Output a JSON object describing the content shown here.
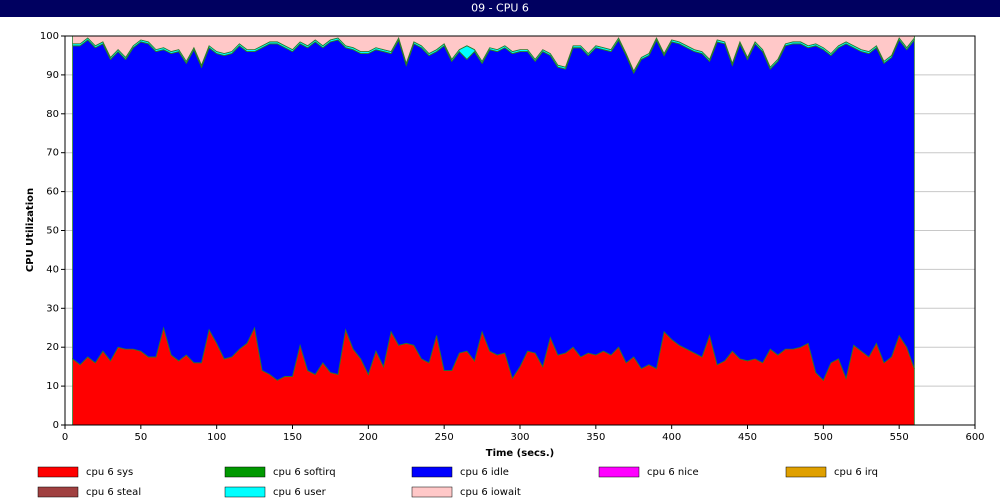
{
  "chart_data": {
    "type": "stacked-area",
    "title": "09 - CPU 6",
    "x_label": "Time (secs.)",
    "y_label": "CPU Utilization",
    "xlim": [
      0,
      600
    ],
    "xticks": [
      0,
      50,
      100,
      150,
      200,
      250,
      300,
      350,
      400,
      450,
      500,
      550,
      600
    ],
    "ylim": [
      0,
      100
    ],
    "yticks": [
      0,
      10,
      20,
      30,
      40,
      50,
      60,
      70,
      80,
      90,
      100
    ],
    "grid": true,
    "x": [
      5,
      10,
      15,
      20,
      25,
      30,
      35,
      40,
      45,
      50,
      55,
      60,
      65,
      70,
      75,
      80,
      85,
      90,
      95,
      100,
      105,
      110,
      115,
      120,
      125,
      130,
      135,
      140,
      145,
      150,
      155,
      160,
      165,
      170,
      175,
      180,
      185,
      190,
      195,
      200,
      205,
      210,
      215,
      220,
      225,
      230,
      235,
      240,
      245,
      250,
      255,
      260,
      265,
      270,
      275,
      280,
      285,
      290,
      295,
      300,
      305,
      310,
      315,
      320,
      325,
      330,
      335,
      340,
      345,
      350,
      355,
      360,
      365,
      370,
      375,
      380,
      385,
      390,
      395,
      400,
      405,
      410,
      415,
      420,
      425,
      430,
      435,
      440,
      445,
      450,
      455,
      460,
      465,
      470,
      475,
      480,
      485,
      490,
      495,
      500,
      505,
      510,
      515,
      520,
      525,
      530,
      535,
      540,
      545,
      550,
      555,
      560
    ],
    "series": [
      {
        "name": "cpu 6 sys",
        "color": "#ff0000",
        "values": [
          17,
          15.5,
          17.5,
          16,
          19,
          16.5,
          20,
          19.5,
          19.5,
          19,
          17.5,
          17.5,
          25,
          18,
          16.5,
          18,
          16,
          16,
          24.5,
          21,
          17,
          17.5,
          19.5,
          21,
          25,
          14,
          13,
          11.5,
          12.5,
          12.5,
          20.5,
          14,
          13,
          16,
          13.5,
          13,
          24.5,
          19.5,
          17,
          13,
          19,
          15,
          24,
          20.5,
          21,
          20.5,
          17,
          16,
          23,
          14,
          14,
          18.5,
          19,
          16.5,
          24,
          19,
          18,
          18.5,
          12,
          15,
          19,
          18.5,
          15,
          22.5,
          18,
          18.5,
          20,
          17.5,
          18.5,
          18,
          19,
          18,
          20,
          16,
          17.5,
          14.5,
          15.5,
          14.5,
          24,
          22,
          20.5,
          19.5,
          18.5,
          17.5,
          23,
          15.5,
          16.5,
          19,
          17,
          16.5,
          17,
          16,
          19.5,
          18,
          19.5,
          19.5,
          20,
          21,
          13.5,
          11.5,
          16,
          17,
          12,
          20.5,
          19,
          17.5,
          21,
          16,
          17.5,
          23,
          20,
          14.5
        ]
      },
      {
        "name": "cpu 6 softirq",
        "color": "#009900",
        "values": [
          0,
          0,
          0,
          0,
          0,
          0,
          0,
          0,
          0,
          0,
          0,
          0,
          0,
          0,
          0,
          0,
          0,
          0,
          0,
          0,
          0,
          0,
          0,
          0,
          0,
          0,
          0,
          0,
          0,
          0,
          0,
          0,
          0,
          0,
          0,
          0,
          0,
          0,
          0,
          0,
          0,
          0,
          0,
          0,
          0,
          0,
          0,
          0,
          0,
          0,
          0,
          0,
          0,
          0,
          0,
          0,
          0,
          0,
          0,
          0,
          0,
          0,
          0,
          0,
          0,
          0,
          0,
          0,
          0,
          0,
          0,
          0,
          0,
          0,
          0,
          0,
          0,
          0,
          0,
          0,
          0,
          0,
          0,
          0,
          0,
          0,
          0,
          0,
          0,
          0,
          0,
          0,
          0,
          0,
          0,
          0,
          0,
          0,
          0,
          0,
          0,
          0,
          0,
          0,
          0,
          0,
          0,
          0,
          0,
          0,
          0,
          0
        ]
      },
      {
        "name": "cpu 6 idle",
        "color": "#0000ff",
        "values": [
          80.5,
          82,
          81.5,
          81,
          79,
          77.5,
          76,
          74.5,
          77.5,
          79.5,
          80.5,
          78.5,
          71.5,
          77.5,
          79.5,
          75,
          80.5,
          76,
          72.5,
          74.5,
          78,
          78,
          78,
          75,
          71,
          83,
          85,
          86.5,
          84.5,
          83.5,
          77.5,
          83,
          85.5,
          81,
          85,
          86,
          72.5,
          77,
          78.5,
          82.5,
          77.5,
          81,
          71.5,
          78.5,
          71.5,
          77.5,
          80,
          79,
          73,
          83.5,
          79.5,
          77.5,
          75,
          79.5,
          69,
          77.5,
          78,
          78.5,
          83.5,
          81,
          77,
          75,
          81,
          72.5,
          74,
          73,
          77,
          79.5,
          76.5,
          79,
          77.5,
          78,
          79,
          79,
          73,
          79.5,
          79.5,
          84.5,
          71,
          76.5,
          77.5,
          77.5,
          77.5,
          78,
          70.5,
          83,
          81.5,
          73.5,
          81,
          77.5,
          81,
          80,
          72,
          75.5,
          78,
          78.5,
          78,
          76,
          84,
          85,
          79,
          80,
          86,
          76.5,
          77,
          78,
          76,
          77,
          77,
          76,
          76.5,
          84.5
        ]
      },
      {
        "name": "cpu 6 nice",
        "color": "#ff00ff",
        "values": [
          0,
          0,
          0,
          0,
          0,
          0,
          0,
          0,
          0,
          0,
          0,
          0,
          0,
          0,
          0,
          0,
          0,
          0,
          0,
          0,
          0,
          0,
          0,
          0,
          0,
          0,
          0,
          0,
          0,
          0,
          0,
          0,
          0,
          0,
          0,
          0,
          0,
          0,
          0,
          0,
          0,
          0,
          0,
          0,
          0,
          0,
          0,
          0,
          0,
          0,
          0,
          0,
          0,
          0,
          0,
          0,
          0,
          0,
          0,
          0,
          0,
          0,
          0,
          0,
          0,
          0,
          0,
          0,
          0,
          0,
          0,
          0,
          0,
          0,
          0,
          0,
          0,
          0,
          0,
          0,
          0,
          0,
          0,
          0,
          0,
          0,
          0,
          0,
          0,
          0,
          0,
          0,
          0,
          0,
          0,
          0,
          0,
          0,
          0,
          0,
          0,
          0,
          0,
          0,
          0,
          0,
          0,
          0,
          0,
          0,
          0,
          0
        ]
      },
      {
        "name": "cpu 6 irq",
        "color": "#e0a000",
        "values": [
          0,
          0,
          0,
          0,
          0,
          0,
          0,
          0,
          0,
          0,
          0,
          0,
          0,
          0,
          0,
          0,
          0,
          0,
          0,
          0,
          0,
          0,
          0,
          0,
          0,
          0,
          0,
          0,
          0,
          0,
          0,
          0,
          0,
          0,
          0,
          0,
          0,
          0,
          0,
          0,
          0,
          0,
          0,
          0,
          0,
          0,
          0,
          0,
          0,
          0,
          0,
          0,
          0,
          0,
          0,
          0,
          0,
          0,
          0,
          0,
          0,
          0,
          0,
          0,
          0,
          0,
          0,
          0,
          0,
          0,
          0,
          0,
          0,
          0,
          0,
          0,
          0,
          0,
          0,
          0,
          0,
          0,
          0,
          0,
          0,
          0,
          0,
          0,
          0,
          0,
          0,
          0,
          0,
          0,
          0,
          0,
          0,
          0,
          0,
          0,
          0,
          0,
          0,
          0,
          0,
          0,
          0,
          0,
          0,
          0,
          0,
          0
        ]
      },
      {
        "name": "cpu 6 steal",
        "color": "#a04040",
        "values": [
          0,
          0,
          0,
          0,
          0,
          0,
          0,
          0,
          0,
          0,
          0,
          0,
          0,
          0,
          0,
          0,
          0,
          0,
          0,
          0,
          0,
          0,
          0,
          0,
          0,
          0,
          0,
          0,
          0,
          0,
          0,
          0,
          0,
          0,
          0,
          0,
          0,
          0,
          0,
          0,
          0,
          0,
          0,
          0,
          0,
          0,
          0,
          0,
          0,
          0,
          0,
          0,
          0,
          0,
          0,
          0,
          0,
          0,
          0,
          0,
          0,
          0,
          0,
          0,
          0,
          0,
          0,
          0,
          0,
          0,
          0,
          0,
          0,
          0,
          0,
          0,
          0,
          0,
          0,
          0,
          0,
          0,
          0,
          0,
          0,
          0,
          0,
          0,
          0,
          0,
          0,
          0,
          0,
          0,
          0,
          0,
          0,
          0,
          0,
          0,
          0,
          0,
          0,
          0,
          0,
          0,
          0,
          0,
          0,
          0,
          0,
          0
        ]
      },
      {
        "name": "cpu 6 user",
        "color": "#00ffff",
        "values": [
          0.5,
          0.5,
          0.5,
          0.5,
          0.5,
          0.5,
          0.5,
          0.5,
          0.5,
          0.5,
          0.5,
          0.5,
          0.5,
          0.5,
          0.5,
          0.5,
          0.5,
          0.5,
          0.5,
          0.5,
          0.5,
          0.5,
          0.5,
          0.5,
          0.5,
          0.5,
          0.5,
          0.5,
          0.5,
          0.5,
          0.5,
          0.5,
          0.5,
          0.5,
          0.5,
          0.5,
          0.5,
          0.5,
          0.5,
          0.5,
          0.5,
          0.5,
          0.5,
          0.5,
          0.5,
          0.5,
          0.5,
          0.5,
          0.5,
          0.5,
          0.5,
          0.5,
          3.5,
          0.5,
          0.5,
          0.5,
          0.5,
          0.5,
          0.5,
          0.5,
          0.5,
          0.5,
          0.5,
          0.5,
          0.5,
          0.5,
          0.5,
          0.5,
          0.5,
          0.5,
          0.5,
          0.5,
          0.5,
          0.5,
          0.5,
          0.5,
          0.5,
          0.5,
          0.5,
          0.5,
          0.5,
          0.5,
          0.5,
          0.5,
          0.5,
          0.5,
          0.5,
          0.5,
          0.5,
          0.5,
          0.5,
          0.5,
          0.5,
          0.5,
          0.5,
          0.5,
          0.5,
          0.5,
          0.5,
          0.5,
          0.5,
          0.5,
          0.5,
          0.5,
          0.5,
          0.5,
          0.5,
          0.5,
          0.5,
          0.5,
          0.5,
          0.5
        ]
      },
      {
        "name": "cpu 6 iowait",
        "color": "#ffc8c8",
        "values": [
          2,
          2,
          0.5,
          2.5,
          1.5,
          5.5,
          3.5,
          5.5,
          2.5,
          1,
          1.5,
          3.5,
          3,
          4,
          3.5,
          6.5,
          3,
          7.5,
          2.5,
          4,
          4.5,
          4,
          2,
          3.5,
          3.5,
          2.5,
          1.5,
          1.5,
          2.5,
          3.5,
          1.5,
          2.5,
          1,
          2.5,
          1,
          0.5,
          2.5,
          3,
          4,
          4,
          3,
          3.5,
          4,
          0.5,
          7,
          1.5,
          2.5,
          4.5,
          3.5,
          2,
          6,
          3.5,
          2.5,
          3.5,
          6.5,
          3,
          3.5,
          2.5,
          4,
          3.5,
          3.5,
          6,
          3.5,
          4.5,
          7.5,
          8,
          2.5,
          2.5,
          4.5,
          2.5,
          3,
          3.5,
          0.5,
          4.5,
          9,
          5.5,
          4.5,
          0.5,
          4.5,
          1,
          1.5,
          2.5,
          3.5,
          4,
          6,
          1,
          1.5,
          7,
          1.5,
          5.5,
          1.5,
          3.5,
          8,
          6,
          2,
          1.5,
          1.5,
          2.5,
          2,
          3,
          4.5,
          2.5,
          1.5,
          2.5,
          3.5,
          4,
          2.5,
          6.5,
          5,
          0.5,
          3,
          0.5
        ]
      }
    ]
  }
}
